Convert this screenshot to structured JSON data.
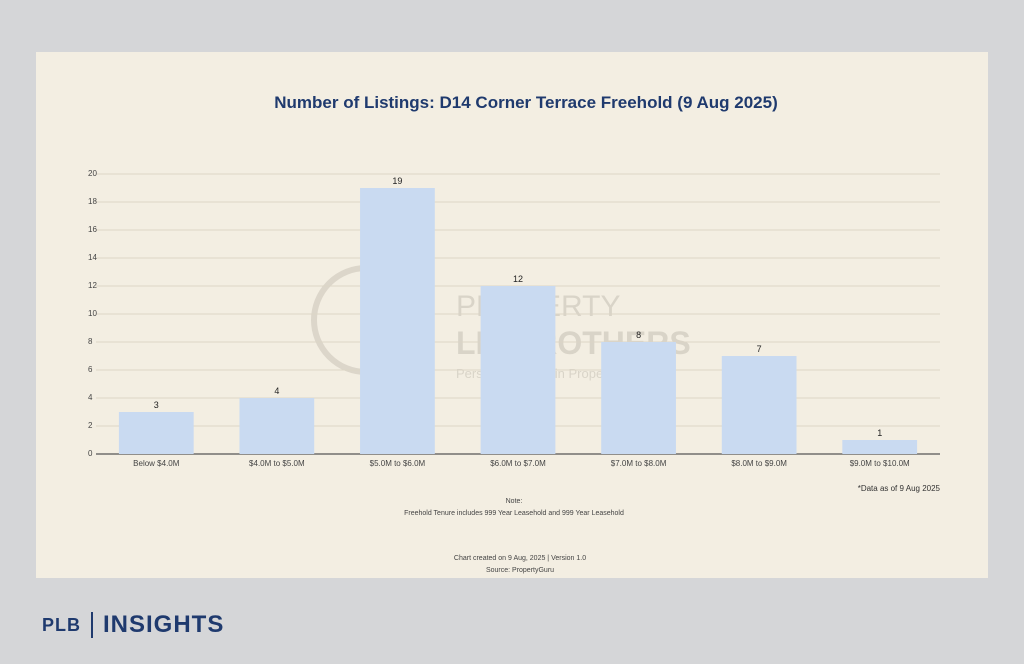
{
  "brand": {
    "left": "PLB",
    "right": "INSIGHTS"
  },
  "watermark": {
    "line1": "PROPERTY",
    "line2": "LIMBROTHERS",
    "line3": "Personal Wealth in Property"
  },
  "note": {
    "heading": "Note:",
    "text": "Freehold Tenure includes 999 Year Leasehold and 999 Year Leasehold",
    "data_as_of": "*Data as of 9 Aug 2025",
    "created": "Chart created on 9 Aug, 2025 | Version 1.0",
    "source": "Source: PropertyGuru"
  },
  "chart_data": {
    "type": "bar",
    "title": "Number of Listings: D14 Corner Terrace Freehold (9 Aug 2025)",
    "xlabel": "",
    "ylabel": "",
    "categories": [
      "Below $4.0M",
      "$4.0M to $5.0M",
      "$5.0M to $6.0M",
      "$6.0M to $7.0M",
      "$7.0M to $8.0M",
      "$8.0M to $9.0M",
      "$9.0M to $10.0M"
    ],
    "values": [
      3,
      4,
      19,
      12,
      8,
      7,
      1
    ],
    "yticks": [
      0,
      2,
      4,
      6,
      8,
      10,
      12,
      14,
      16,
      18,
      20
    ],
    "ylim": [
      0,
      20
    ],
    "bar_color": "#c9daf1",
    "grid": true
  }
}
